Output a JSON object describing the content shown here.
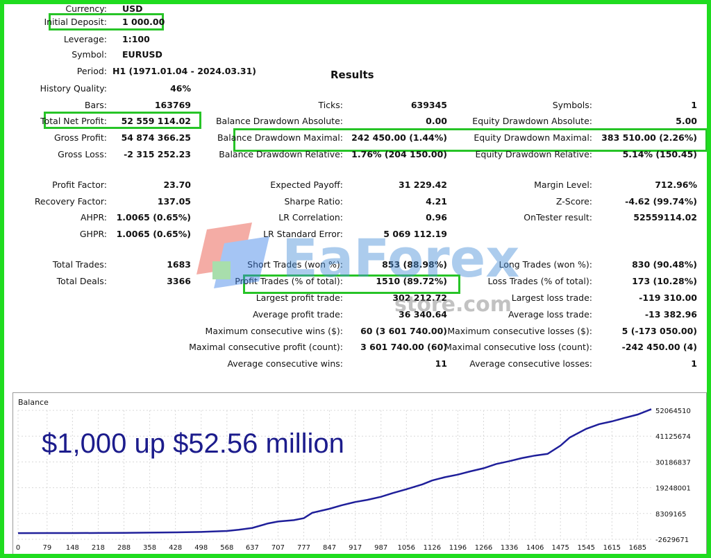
{
  "report": {
    "currency": {
      "label": "Currency:",
      "value": "USD"
    },
    "initial_deposit": {
      "label": "Initial Deposit:",
      "value": "1 000.00"
    },
    "leverage": {
      "label": "Leverage:",
      "value": "1:100"
    },
    "symbol": {
      "label": "Symbol:",
      "value": "EURUSD"
    },
    "period": {
      "label": "Period:",
      "value": "H1 (1971.01.04 - 2024.03.31)"
    },
    "results_title": "Results",
    "history_quality": {
      "label": "History Quality:",
      "value": "46%"
    },
    "bars": {
      "label": "Bars:",
      "value": "163769"
    },
    "ticks": {
      "label": "Ticks:",
      "value": "639345"
    },
    "symbols": {
      "label": "Symbols:",
      "value": "1"
    },
    "total_net_profit": {
      "label": "Total Net Profit:",
      "value": "52 559 114.02"
    },
    "balance_dd_abs": {
      "label": "Balance Drawdown Absolute:",
      "value": "0.00"
    },
    "equity_dd_abs": {
      "label": "Equity Drawdown Absolute:",
      "value": "5.00"
    },
    "gross_profit": {
      "label": "Gross Profit:",
      "value": "54 874 366.25"
    },
    "balance_dd_max": {
      "label": "Balance Drawdown Maximal:",
      "value": "242 450.00 (1.44%)"
    },
    "equity_dd_max": {
      "label": "Equity Drawdown Maximal:",
      "value": "383 510.00 (2.26%)"
    },
    "gross_loss": {
      "label": "Gross Loss:",
      "value": "-2 315 252.23"
    },
    "balance_dd_rel": {
      "label": "Balance Drawdown Relative:",
      "value": "1.76% (204 150.00)"
    },
    "equity_dd_rel": {
      "label": "Equity Drawdown Relative:",
      "value": "5.14% (150.45)"
    },
    "profit_factor": {
      "label": "Profit Factor:",
      "value": "23.70"
    },
    "expected_payoff": {
      "label": "Expected Payoff:",
      "value": "31 229.42"
    },
    "margin_level": {
      "label": "Margin Level:",
      "value": "712.96%"
    },
    "recovery_factor": {
      "label": "Recovery Factor:",
      "value": "137.05"
    },
    "sharpe_ratio": {
      "label": "Sharpe Ratio:",
      "value": "4.21"
    },
    "z_score": {
      "label": "Z-Score:",
      "value": "-4.62 (99.74%)"
    },
    "ahpr": {
      "label": "AHPR:",
      "value": "1.0065 (0.65%)"
    },
    "lr_correlation": {
      "label": "LR Correlation:",
      "value": "0.96"
    },
    "ontester": {
      "label": "OnTester result:",
      "value": "52559114.02"
    },
    "ghpr": {
      "label": "GHPR:",
      "value": "1.0065 (0.65%)"
    },
    "lr_std_error": {
      "label": "LR Standard Error:",
      "value": "5 069 112.19"
    },
    "total_trades": {
      "label": "Total Trades:",
      "value": "1683"
    },
    "short_trades": {
      "label": "Short Trades (won %):",
      "value": "853 (88.98%)"
    },
    "long_trades": {
      "label": "Long Trades (won %):",
      "value": "830 (90.48%)"
    },
    "total_deals": {
      "label": "Total Deals:",
      "value": "3366"
    },
    "profit_trades": {
      "label": "Profit Trades (% of total):",
      "value": "1510 (89.72%)"
    },
    "loss_trades": {
      "label": "Loss Trades (% of total):",
      "value": "173 (10.28%)"
    },
    "largest_profit": {
      "label": "Largest profit trade:",
      "value": "302 212.72"
    },
    "largest_loss": {
      "label": "Largest loss trade:",
      "value": "-119 310.00"
    },
    "avg_profit": {
      "label": "Average profit trade:",
      "value": "36 340.64"
    },
    "avg_loss": {
      "label": "Average loss trade:",
      "value": "-13 382.96"
    },
    "max_consec_wins": {
      "label": "Maximum consecutive wins ($):",
      "value": "60 (3 601 740.00)"
    },
    "max_consec_losses": {
      "label": "Maximum consecutive losses ($):",
      "value": "5 (-173 050.00)"
    },
    "maximal_consec_profit": {
      "label": "Maximal consecutive profit (count):",
      "value": "3 601 740.00 (60)"
    },
    "maximal_consec_loss": {
      "label": "Maximal consecutive loss (count):",
      "value": "-242 450.00 (4)"
    },
    "avg_consec_wins": {
      "label": "Average consecutive wins:",
      "value": "11"
    },
    "avg_consec_losses": {
      "label": "Average consecutive losses:",
      "value": "1"
    }
  },
  "watermark": {
    "brand": "EaForex",
    "sub": "store.com"
  },
  "caption": "$1,000 up $52.56 million",
  "colors": {
    "border": "#1fdc1f",
    "highlight": "#27c427",
    "line": "#1f1f9a",
    "caption": "#1c1c8c"
  },
  "chart_data": {
    "type": "line",
    "title": "Balance",
    "x_ticks": [
      "0",
      "79",
      "148",
      "218",
      "288",
      "358",
      "428",
      "498",
      "568",
      "637",
      "707",
      "777",
      "847",
      "917",
      "987",
      "1056",
      "1126",
      "1196",
      "1266",
      "1336",
      "1406",
      "1475",
      "1545",
      "1615",
      "1685"
    ],
    "y_ticks": [
      "52064510",
      "41125674",
      "30186837",
      "19248001",
      "8309165",
      "-2629671"
    ],
    "xlim": [
      0,
      1722
    ],
    "ylim": [
      -2629671,
      52064510
    ],
    "grid": true,
    "series": [
      {
        "x": [
          0,
          79,
          148,
          218,
          288,
          358,
          428,
          498,
          568,
          600,
          637,
          680,
          707,
          750,
          777,
          800,
          847,
          880,
          917,
          950,
          987,
          1020,
          1056,
          1100,
          1126,
          1160,
          1196,
          1230,
          1266,
          1300,
          1336,
          1370,
          1406,
          1440,
          1475,
          1500,
          1545,
          1580,
          1615,
          1650,
          1685,
          1722
        ],
        "values": [
          1000,
          10000,
          30000,
          60000,
          100000,
          180000,
          300000,
          500000,
          900000,
          1400000,
          2200000,
          4100000,
          4900000,
          5500000,
          6300000,
          8600000,
          10300000,
          11800000,
          13200000,
          14100000,
          15400000,
          17000000,
          18600000,
          20700000,
          22300000,
          23700000,
          24800000,
          26200000,
          27500000,
          29300000,
          30500000,
          31800000,
          32900000,
          33600000,
          37100000,
          40500000,
          44200000,
          46200000,
          47400000,
          48900000,
          50300000,
          52559114
        ]
      }
    ]
  }
}
